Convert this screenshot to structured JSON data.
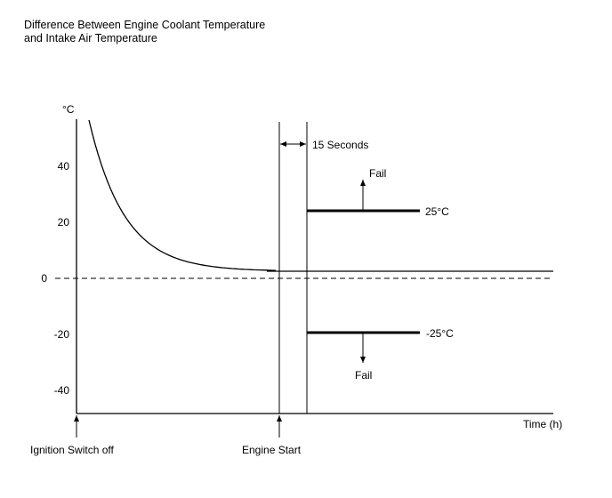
{
  "chart_data": {
    "type": "line",
    "title_lines": [
      "Difference Between Engine Coolant Temperature",
      "and Intake Air Temperature"
    ],
    "ylabel": "°C",
    "xlabel": "Time (h)",
    "ylim": [
      -53,
      56
    ],
    "yticks": [
      {
        "value": 40,
        "label": "40"
      },
      {
        "value": 20,
        "label": "20"
      },
      {
        "value": 0,
        "label": "0"
      },
      {
        "value": -20,
        "label": "-20"
      },
      {
        "value": -40,
        "label": "-40"
      }
    ],
    "events": {
      "ignition_off": "Ignition Switch off",
      "engine_start": "Engine Start"
    },
    "interval_label": "15 Seconds",
    "thresholds": [
      {
        "value": 25,
        "label": "25°C",
        "result": "Fail"
      },
      {
        "value": -25,
        "label": "-25°C",
        "result": "Fail"
      }
    ],
    "zero_line": "dashed",
    "curve": "exponential decay settling just above 0"
  }
}
